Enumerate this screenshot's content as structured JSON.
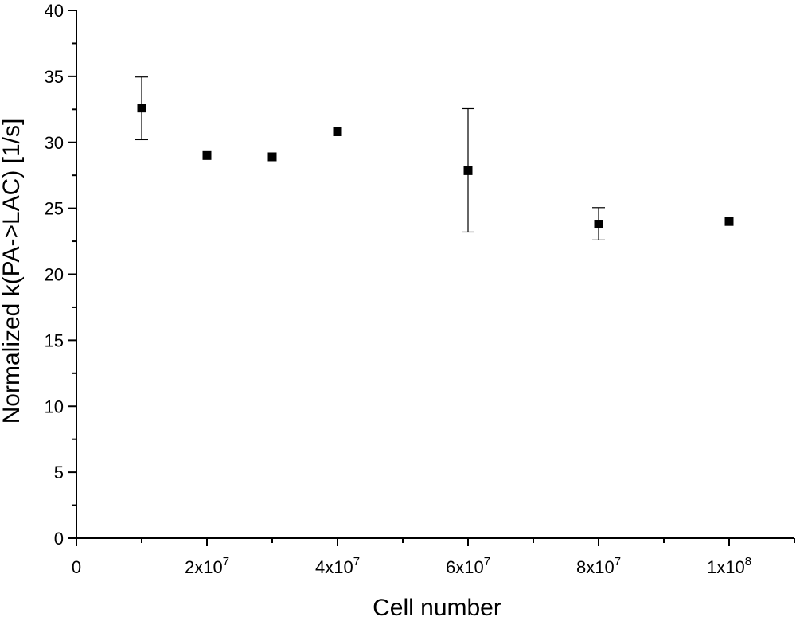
{
  "chart_data": {
    "type": "scatter",
    "title": "",
    "xlabel": "Cell number",
    "ylabel": "Normalized k(PA->LAC) [1/s]",
    "xlim": [
      0,
      110000000
    ],
    "ylim": [
      0,
      40
    ],
    "x_ticks": [
      {
        "value": 0,
        "mantissa": "0",
        "exponent": ""
      },
      {
        "value": 20000000,
        "mantissa": "2x10",
        "exponent": "7"
      },
      {
        "value": 40000000,
        "mantissa": "4x10",
        "exponent": "7"
      },
      {
        "value": 60000000,
        "mantissa": "6x10",
        "exponent": "7"
      },
      {
        "value": 80000000,
        "mantissa": "8x10",
        "exponent": "7"
      },
      {
        "value": 100000000,
        "mantissa": "1x10",
        "exponent": "8"
      }
    ],
    "y_ticks": [
      "0",
      "5",
      "10",
      "15",
      "20",
      "25",
      "30",
      "35",
      "40"
    ],
    "grid": false,
    "series": [
      {
        "marker": "square",
        "color": "#000000",
        "points": [
          {
            "x": 10000000,
            "y": 32.6,
            "err_low": 30.2,
            "err_high": 34.95
          },
          {
            "x": 20000000,
            "y": 29.0
          },
          {
            "x": 30000000,
            "y": 28.9
          },
          {
            "x": 40000000,
            "y": 30.8
          },
          {
            "x": 60000000,
            "y": 27.85,
            "err_low": 23.2,
            "err_high": 32.55
          },
          {
            "x": 80000000,
            "y": 23.8,
            "err_low": 22.6,
            "err_high": 25.05
          },
          {
            "x": 100000000,
            "y": 24.0
          }
        ]
      }
    ]
  }
}
